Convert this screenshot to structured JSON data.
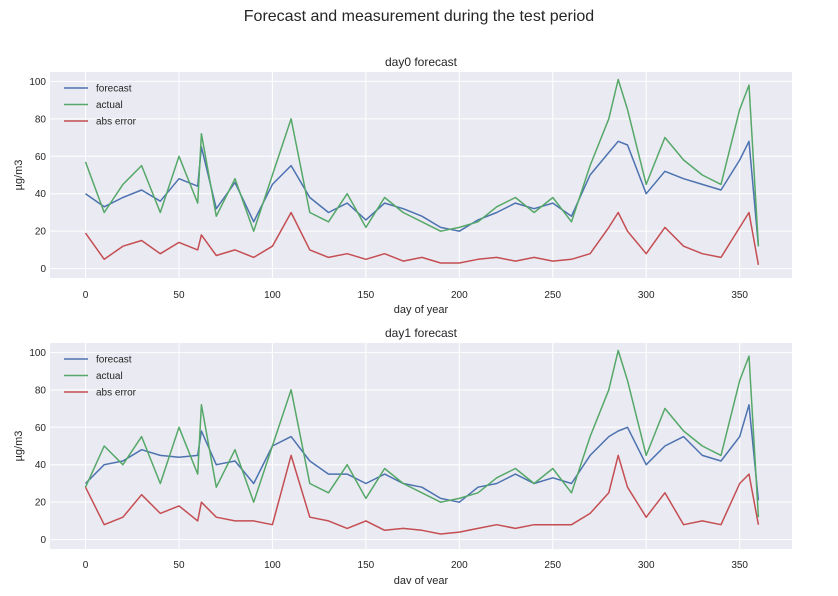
{
  "suptitle": "Forecast and measurement during the test period",
  "colors": {
    "forecast": "#4c72b0",
    "actual": "#55a868",
    "abs_error": "#c44e52",
    "plot_bg": "#eaeaf2",
    "grid": "#ffffff"
  },
  "chart_data": [
    {
      "type": "line",
      "title": "day0 forecast",
      "xlabel": "day of year",
      "ylabel": "µg/m3",
      "xlim": [
        -19,
        378
      ],
      "ylim": [
        -5,
        105
      ],
      "xticks": [
        0,
        50,
        100,
        150,
        200,
        250,
        300,
        350
      ],
      "yticks": [
        0,
        20,
        40,
        60,
        80,
        100
      ],
      "grid": true,
      "legend_position": "upper-left",
      "series": [
        {
          "name": "forecast",
          "color": "#4c72b0",
          "x": [
            0,
            10,
            20,
            30,
            40,
            50,
            60,
            62,
            70,
            80,
            90,
            100,
            110,
            120,
            130,
            140,
            150,
            160,
            170,
            180,
            190,
            200,
            210,
            220,
            230,
            240,
            250,
            260,
            270,
            280,
            285,
            290,
            300,
            310,
            320,
            330,
            340,
            350,
            355,
            360
          ],
          "values": [
            40,
            33,
            38,
            42,
            36,
            48,
            44,
            65,
            32,
            46,
            25,
            45,
            55,
            38,
            30,
            35,
            26,
            35,
            32,
            28,
            22,
            20,
            26,
            30,
            35,
            32,
            35,
            28,
            50,
            62,
            68,
            66,
            40,
            52,
            48,
            45,
            42,
            58,
            68,
            12
          ]
        },
        {
          "name": "actual",
          "color": "#55a868",
          "x": [
            0,
            10,
            20,
            30,
            40,
            50,
            60,
            62,
            70,
            80,
            90,
            100,
            110,
            120,
            130,
            140,
            150,
            160,
            170,
            180,
            190,
            200,
            210,
            220,
            230,
            240,
            250,
            260,
            270,
            280,
            285,
            290,
            300,
            310,
            320,
            330,
            340,
            350,
            355,
            360
          ],
          "values": [
            57,
            30,
            45,
            55,
            30,
            60,
            35,
            72,
            28,
            48,
            20,
            50,
            80,
            30,
            25,
            40,
            22,
            38,
            30,
            25,
            20,
            22,
            25,
            33,
            38,
            30,
            38,
            25,
            55,
            80,
            101,
            85,
            45,
            70,
            58,
            50,
            45,
            85,
            98,
            12
          ]
        },
        {
          "name": "abs error",
          "color": "#c44e52",
          "x": [
            0,
            10,
            20,
            30,
            40,
            50,
            60,
            62,
            70,
            80,
            90,
            100,
            110,
            120,
            130,
            140,
            150,
            160,
            170,
            180,
            190,
            200,
            210,
            220,
            230,
            240,
            250,
            260,
            270,
            280,
            285,
            290,
            300,
            310,
            320,
            330,
            340,
            350,
            355,
            360
          ],
          "values": [
            19,
            5,
            12,
            15,
            8,
            14,
            10,
            18,
            7,
            10,
            6,
            12,
            30,
            10,
            6,
            8,
            5,
            8,
            4,
            6,
            3,
            3,
            5,
            6,
            4,
            6,
            4,
            5,
            8,
            22,
            30,
            20,
            8,
            22,
            12,
            8,
            6,
            22,
            30,
            2
          ]
        }
      ]
    },
    {
      "type": "line",
      "title": "day1 forecast",
      "xlabel": "day of year",
      "ylabel": "µg/m3",
      "xlim": [
        -19,
        378
      ],
      "ylim": [
        -5,
        105
      ],
      "xticks": [
        0,
        50,
        100,
        150,
        200,
        250,
        300,
        350
      ],
      "yticks": [
        0,
        20,
        40,
        60,
        80,
        100
      ],
      "grid": true,
      "legend_position": "upper-left",
      "series": [
        {
          "name": "forecast",
          "color": "#4c72b0",
          "x": [
            0,
            10,
            20,
            30,
            40,
            50,
            60,
            62,
            70,
            80,
            90,
            100,
            110,
            120,
            130,
            140,
            150,
            160,
            170,
            180,
            190,
            200,
            210,
            220,
            230,
            240,
            250,
            260,
            270,
            280,
            285,
            290,
            300,
            310,
            320,
            330,
            340,
            350,
            355,
            360
          ],
          "values": [
            30,
            40,
            42,
            48,
            45,
            44,
            45,
            58,
            40,
            42,
            30,
            50,
            55,
            42,
            35,
            35,
            30,
            35,
            30,
            28,
            22,
            20,
            28,
            30,
            35,
            30,
            33,
            30,
            45,
            55,
            58,
            60,
            40,
            50,
            55,
            45,
            42,
            55,
            72,
            21
          ]
        },
        {
          "name": "actual",
          "color": "#55a868",
          "x": [
            0,
            10,
            20,
            30,
            40,
            50,
            60,
            62,
            70,
            80,
            90,
            100,
            110,
            120,
            130,
            140,
            150,
            160,
            170,
            180,
            190,
            200,
            210,
            220,
            230,
            240,
            250,
            260,
            270,
            280,
            285,
            290,
            300,
            310,
            320,
            330,
            340,
            350,
            355,
            360
          ],
          "values": [
            28,
            50,
            40,
            55,
            30,
            60,
            35,
            72,
            28,
            48,
            20,
            50,
            80,
            30,
            25,
            40,
            22,
            38,
            30,
            25,
            20,
            22,
            25,
            33,
            38,
            30,
            38,
            25,
            55,
            80,
            101,
            85,
            45,
            70,
            58,
            50,
            45,
            85,
            98,
            12
          ]
        },
        {
          "name": "abs error",
          "color": "#c44e52",
          "x": [
            0,
            10,
            20,
            30,
            40,
            50,
            60,
            62,
            70,
            80,
            90,
            100,
            110,
            120,
            130,
            140,
            150,
            160,
            170,
            180,
            190,
            200,
            210,
            220,
            230,
            240,
            250,
            260,
            270,
            280,
            285,
            290,
            300,
            310,
            320,
            330,
            340,
            350,
            355,
            360
          ],
          "values": [
            28,
            8,
            12,
            24,
            14,
            18,
            10,
            20,
            12,
            10,
            10,
            8,
            45,
            12,
            10,
            6,
            10,
            5,
            6,
            5,
            3,
            4,
            6,
            8,
            6,
            8,
            8,
            8,
            14,
            25,
            45,
            28,
            12,
            25,
            8,
            10,
            8,
            30,
            35,
            8
          ]
        }
      ]
    }
  ]
}
